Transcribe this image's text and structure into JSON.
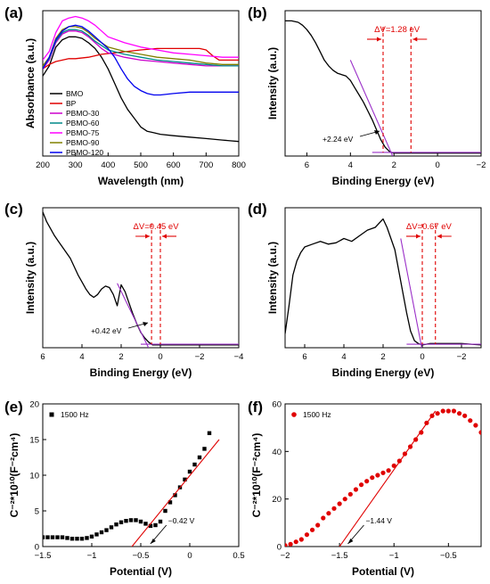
{
  "chart_data": [
    {
      "id": "a",
      "panel_label": "(a)",
      "type": "line",
      "xlabel": "Wavelength (nm)",
      "ylabel": "Absorbance (a.u.)",
      "xlim": [
        200,
        800
      ],
      "ylim": [
        0,
        1
      ],
      "xticks": [
        200,
        300,
        400,
        500,
        600,
        700,
        800
      ],
      "yticks": [],
      "legend_position": "left",
      "series": [
        {
          "name": "BMO",
          "color": "#000000",
          "x": [
            200,
            220,
            240,
            260,
            280,
            300,
            320,
            340,
            360,
            380,
            400,
            420,
            440,
            460,
            480,
            500,
            520,
            540,
            560,
            600,
            650,
            700,
            750,
            800
          ],
          "y": [
            0.55,
            0.62,
            0.75,
            0.8,
            0.82,
            0.82,
            0.81,
            0.78,
            0.74,
            0.68,
            0.6,
            0.5,
            0.4,
            0.32,
            0.26,
            0.2,
            0.17,
            0.16,
            0.15,
            0.14,
            0.13,
            0.12,
            0.11,
            0.1
          ]
        },
        {
          "name": "BP",
          "color": "#e00000",
          "x": [
            200,
            220,
            240,
            260,
            280,
            300,
            340,
            380,
            420,
            460,
            500,
            550,
            600,
            650,
            680,
            700,
            720,
            740,
            760,
            800
          ],
          "y": [
            0.6,
            0.63,
            0.65,
            0.66,
            0.67,
            0.67,
            0.68,
            0.7,
            0.71,
            0.72,
            0.73,
            0.74,
            0.74,
            0.74,
            0.74,
            0.73,
            0.69,
            0.66,
            0.66,
            0.66
          ]
        },
        {
          "name": "PBMO-30",
          "color": "#cc00cc",
          "x": [
            200,
            220,
            240,
            260,
            280,
            300,
            320,
            340,
            360,
            380,
            400,
            450,
            500,
            550,
            600,
            650,
            700,
            750,
            800
          ],
          "y": [
            0.6,
            0.66,
            0.78,
            0.84,
            0.86,
            0.86,
            0.85,
            0.82,
            0.78,
            0.74,
            0.71,
            0.68,
            0.66,
            0.65,
            0.64,
            0.63,
            0.62,
            0.62,
            0.62
          ]
        },
        {
          "name": "PBMO-60",
          "color": "#008888",
          "x": [
            200,
            220,
            240,
            260,
            280,
            300,
            320,
            340,
            360,
            380,
            400,
            450,
            500,
            550,
            600,
            650,
            700,
            750,
            800
          ],
          "y": [
            0.61,
            0.67,
            0.79,
            0.85,
            0.87,
            0.87,
            0.86,
            0.83,
            0.79,
            0.76,
            0.73,
            0.7,
            0.68,
            0.66,
            0.65,
            0.64,
            0.63,
            0.62,
            0.62
          ]
        },
        {
          "name": "PBMO-75",
          "color": "#ff00ff",
          "x": [
            200,
            220,
            240,
            260,
            280,
            300,
            320,
            340,
            360,
            380,
            400,
            450,
            500,
            550,
            600,
            650,
            700,
            750,
            800
          ],
          "y": [
            0.66,
            0.72,
            0.85,
            0.93,
            0.95,
            0.96,
            0.95,
            0.93,
            0.9,
            0.86,
            0.82,
            0.78,
            0.75,
            0.73,
            0.71,
            0.7,
            0.69,
            0.68,
            0.68
          ]
        },
        {
          "name": "PBMO-90",
          "color": "#808000",
          "x": [
            200,
            220,
            240,
            260,
            280,
            300,
            320,
            340,
            360,
            380,
            400,
            450,
            500,
            550,
            600,
            650,
            700,
            750,
            800
          ],
          "y": [
            0.62,
            0.68,
            0.81,
            0.87,
            0.89,
            0.89,
            0.88,
            0.85,
            0.81,
            0.78,
            0.75,
            0.72,
            0.7,
            0.68,
            0.67,
            0.66,
            0.64,
            0.63,
            0.63
          ]
        },
        {
          "name": "PBMO-120",
          "color": "#0000ee",
          "x": [
            200,
            220,
            240,
            260,
            280,
            300,
            320,
            340,
            360,
            380,
            400,
            420,
            440,
            460,
            480,
            500,
            520,
            540,
            560,
            600,
            650,
            700,
            750,
            800
          ],
          "y": [
            0.6,
            0.68,
            0.8,
            0.86,
            0.89,
            0.9,
            0.89,
            0.86,
            0.82,
            0.78,
            0.74,
            0.68,
            0.6,
            0.53,
            0.48,
            0.45,
            0.43,
            0.42,
            0.42,
            0.43,
            0.44,
            0.44,
            0.44,
            0.44
          ]
        }
      ]
    },
    {
      "id": "b",
      "panel_label": "(b)",
      "type": "line",
      "xlabel": "Binding Energy (eV)",
      "ylabel": "Intensity (a.u.)",
      "xlim": [
        7,
        -2
      ],
      "ylim": [
        0,
        1
      ],
      "xticks": [
        6,
        4,
        2,
        0,
        -2
      ],
      "yticks": [],
      "series": [
        {
          "name": "",
          "color": "#000000",
          "x": [
            7.0,
            6.7,
            6.4,
            6.2,
            6.0,
            5.8,
            5.6,
            5.4,
            5.2,
            5.0,
            4.8,
            4.6,
            4.4,
            4.2,
            4.0,
            3.8,
            3.6,
            3.4,
            3.2,
            3.0,
            2.8,
            2.6,
            2.4,
            2.2,
            2.0,
            1.5,
            1.0,
            0.0,
            -1.0,
            -2.0
          ],
          "y": [
            0.93,
            0.93,
            0.92,
            0.9,
            0.87,
            0.83,
            0.78,
            0.72,
            0.66,
            0.62,
            0.59,
            0.57,
            0.56,
            0.55,
            0.52,
            0.47,
            0.42,
            0.37,
            0.31,
            0.25,
            0.18,
            0.11,
            0.06,
            0.03,
            0.02,
            0.02,
            0.02,
            0.02,
            0.02,
            0.02
          ]
        },
        {
          "name": "fit",
          "color": "#9b30c8",
          "x": [
            4.0,
            2.0
          ],
          "y": [
            0.66,
            -0.02
          ]
        },
        {
          "name": "baseline",
          "color": "#9b30c8",
          "x": [
            3.0,
            -2.0
          ],
          "y": [
            0.025,
            0.025
          ]
        }
      ],
      "annotations": {
        "delta_v": "ΔV=1.28 eV",
        "edge_label": "+2.24 eV",
        "vlines": [
          2.5,
          1.22
        ]
      }
    },
    {
      "id": "c",
      "panel_label": "(c)",
      "type": "line",
      "xlabel": "Binding Energy (eV)",
      "ylabel": "Intensity (a.u.)",
      "xlim": [
        6,
        -4
      ],
      "ylim": [
        0,
        1
      ],
      "xticks": [
        6,
        4,
        2,
        0,
        -2,
        -4
      ],
      "yticks": [],
      "series": [
        {
          "name": "",
          "color": "#000000",
          "x": [
            6.0,
            5.8,
            5.6,
            5.4,
            5.2,
            5.0,
            4.8,
            4.6,
            4.4,
            4.2,
            4.0,
            3.8,
            3.6,
            3.4,
            3.2,
            3.0,
            2.8,
            2.6,
            2.4,
            2.2,
            2.0,
            1.8,
            1.6,
            1.4,
            1.2,
            1.0,
            0.8,
            0.6,
            0.4,
            0.2,
            0.0,
            -1.0,
            -2.0,
            -3.0,
            -4.0
          ],
          "y": [
            0.97,
            0.9,
            0.85,
            0.8,
            0.76,
            0.72,
            0.68,
            0.64,
            0.58,
            0.52,
            0.47,
            0.42,
            0.38,
            0.36,
            0.38,
            0.42,
            0.44,
            0.43,
            0.38,
            0.3,
            0.45,
            0.4,
            0.32,
            0.24,
            0.17,
            0.11,
            0.07,
            0.04,
            0.02,
            0.02,
            0.02,
            0.02,
            0.02,
            0.02,
            0.02
          ]
        },
        {
          "name": "fit",
          "color": "#9b30c8",
          "x": [
            2.2,
            0.5
          ],
          "y": [
            0.46,
            -0.03
          ]
        },
        {
          "name": "baseline",
          "color": "#9b30c8",
          "x": [
            1.0,
            -4.0
          ],
          "y": [
            0.025,
            0.025
          ]
        }
      ],
      "annotations": {
        "delta_v": "ΔV=0.45 eV",
        "edge_label": "+0.42 eV",
        "vlines": [
          0.45,
          0.0
        ]
      }
    },
    {
      "id": "d",
      "panel_label": "(d)",
      "type": "line",
      "xlabel": "Binding Energy (eV)",
      "ylabel": "Intensity (a.u.)",
      "xlim": [
        7,
        -3
      ],
      "ylim": [
        0,
        1
      ],
      "xticks": [
        6,
        4,
        2,
        0,
        -2
      ],
      "yticks": [],
      "series": [
        {
          "name": "",
          "color": "#000000",
          "x": [
            7.0,
            6.8,
            6.6,
            6.4,
            6.2,
            6.0,
            5.6,
            5.2,
            4.8,
            4.4,
            4.0,
            3.6,
            3.2,
            2.8,
            2.4,
            2.0,
            1.8,
            1.6,
            1.4,
            1.2,
            1.0,
            0.8,
            0.6,
            0.4,
            0.2,
            0.0,
            -0.4,
            -1.0,
            -2.0,
            -3.0
          ],
          "y": [
            0.1,
            0.3,
            0.52,
            0.62,
            0.68,
            0.72,
            0.74,
            0.76,
            0.74,
            0.75,
            0.78,
            0.76,
            0.8,
            0.84,
            0.86,
            0.92,
            0.86,
            0.78,
            0.7,
            0.55,
            0.4,
            0.25,
            0.12,
            0.05,
            0.03,
            0.02,
            0.03,
            0.03,
            0.03,
            0.02
          ]
        },
        {
          "name": "fit",
          "color": "#9b30c8",
          "x": [
            1.1,
            0.0
          ],
          "y": [
            0.78,
            -0.02
          ]
        },
        {
          "name": "baseline",
          "color": "#9b30c8",
          "x": [
            0.8,
            -3.0
          ],
          "y": [
            0.025,
            0.025
          ]
        }
      ],
      "annotations": {
        "delta_v": "ΔV=0.67 eV",
        "vlines": [
          0.0,
          -0.67
        ]
      }
    },
    {
      "id": "e",
      "panel_label": "(e)",
      "type": "scatter",
      "xlabel": "Potential (V)",
      "ylabel": "C⁻²*10¹⁰(F⁻²cm⁴)",
      "xlim": [
        -1.5,
        0.5
      ],
      "ylim": [
        0,
        20
      ],
      "xticks": [
        -1.5,
        -1.0,
        -0.5,
        0.0,
        0.5
      ],
      "yticks": [
        0,
        5,
        10,
        15,
        20
      ],
      "legend_position": "top-left",
      "series": [
        {
          "name": "1500 Hz",
          "color": "#000000",
          "marker": "square",
          "x": [
            -1.5,
            -1.45,
            -1.4,
            -1.35,
            -1.3,
            -1.25,
            -1.2,
            -1.15,
            -1.1,
            -1.05,
            -1.0,
            -0.95,
            -0.9,
            -0.85,
            -0.8,
            -0.75,
            -0.7,
            -0.65,
            -0.6,
            -0.55,
            -0.5,
            -0.45,
            -0.4,
            -0.35,
            -0.3,
            -0.25,
            -0.2,
            -0.15,
            -0.1,
            -0.05,
            0.0,
            0.05,
            0.1,
            0.15,
            0.2
          ],
          "y": [
            1.3,
            1.3,
            1.3,
            1.3,
            1.3,
            1.2,
            1.1,
            1.1,
            1.1,
            1.2,
            1.4,
            1.7,
            2.0,
            2.3,
            2.7,
            3.1,
            3.4,
            3.6,
            3.7,
            3.7,
            3.5,
            3.2,
            2.9,
            3.0,
            3.5,
            5.0,
            6.2,
            7.2,
            8.3,
            9.4,
            10.5,
            11.5,
            12.5,
            13.7,
            15.9
          ]
        },
        {
          "name": "fit",
          "color": "#e00000",
          "x": [
            -0.62,
            0.3
          ],
          "y": [
            -0.5,
            15.0
          ]
        }
      ],
      "annotations": {
        "intercept_label": "−0.42 V",
        "intercept": -0.42
      }
    },
    {
      "id": "f",
      "panel_label": "(f)",
      "type": "scatter",
      "xlabel": "Potential (V)",
      "ylabel": "C⁻²*10¹⁰(F⁻²cm⁴)",
      "xlim": [
        -2.0,
        -0.2
      ],
      "ylim": [
        0,
        60
      ],
      "xticks": [
        -2.0,
        -1.5,
        -1.0,
        -0.5
      ],
      "yticks": [
        0,
        20,
        40,
        60
      ],
      "legend_position": "top-left",
      "series": [
        {
          "name": "1500 Hz",
          "color": "#e00000",
          "marker": "circle",
          "x": [
            -2.0,
            -1.95,
            -1.9,
            -1.85,
            -1.8,
            -1.75,
            -1.7,
            -1.65,
            -1.6,
            -1.55,
            -1.5,
            -1.45,
            -1.4,
            -1.35,
            -1.3,
            -1.25,
            -1.2,
            -1.15,
            -1.1,
            -1.05,
            -1.0,
            -0.95,
            -0.9,
            -0.85,
            -0.8,
            -0.75,
            -0.7,
            -0.65,
            -0.6,
            -0.55,
            -0.5,
            -0.45,
            -0.4,
            -0.35,
            -0.3,
            -0.25,
            -0.2
          ],
          "y": [
            0.5,
            1,
            2,
            3,
            5,
            7,
            9,
            12,
            14,
            16,
            18,
            20,
            22,
            24,
            26,
            27.5,
            29,
            30,
            31,
            32,
            34,
            36,
            39,
            42,
            45,
            48,
            52,
            55,
            56,
            57,
            57,
            57,
            56,
            55,
            53,
            51,
            48
          ]
        },
        {
          "name": "fit",
          "color": "#e00000",
          "x": [
            -1.5,
            -0.62
          ],
          "y": [
            0,
            57
          ]
        }
      ],
      "annotations": {
        "intercept_label": "−1.44 V",
        "intercept": -1.44
      }
    }
  ]
}
